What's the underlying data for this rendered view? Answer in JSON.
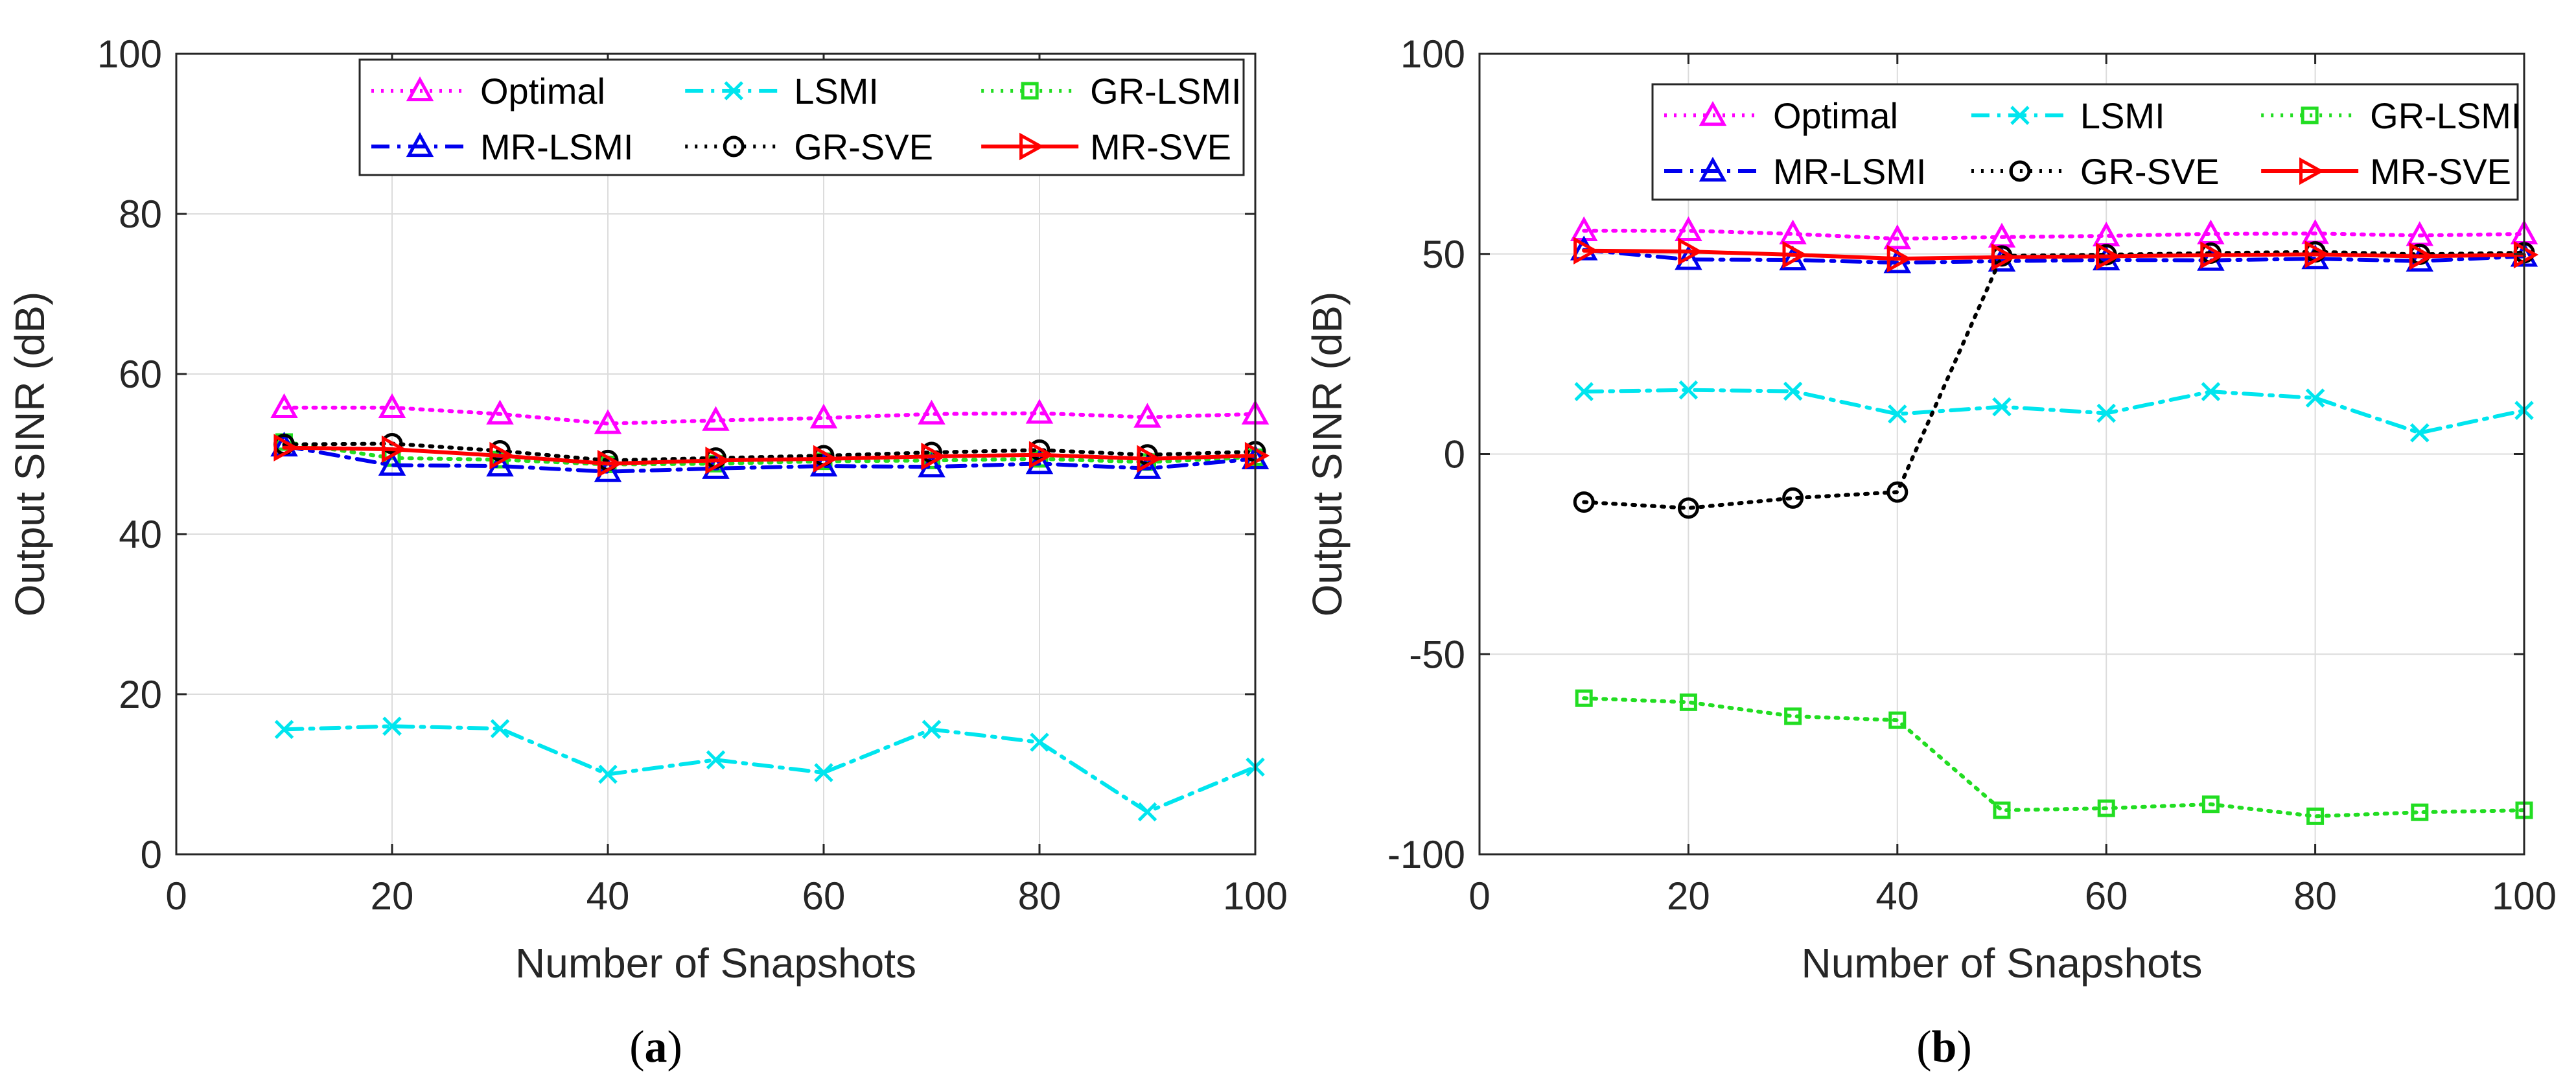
{
  "chart_data": [
    {
      "type": "line",
      "panel": "a",
      "caption": "(a)",
      "xlabel": "Number of Snapshots",
      "ylabel": "Output SINR (dB)",
      "xlim": [
        0,
        100
      ],
      "ylim": [
        0,
        100
      ],
      "xticks": [
        0,
        20,
        40,
        60,
        80,
        100
      ],
      "yticks": [
        0,
        20,
        40,
        60,
        80,
        100
      ],
      "grid": true,
      "legend_position": "top-right",
      "x": [
        10,
        20,
        30,
        40,
        50,
        60,
        70,
        80,
        90,
        100
      ],
      "series": [
        {
          "name": "Optimal",
          "color": "#ff00ff",
          "dash": "dotted",
          "marker": "triangle-up",
          "values": [
            55.8,
            55.8,
            55.0,
            53.8,
            54.2,
            54.5,
            55.0,
            55.1,
            54.6,
            55.0
          ]
        },
        {
          "name": "LSMI",
          "color": "#00e5ee",
          "dash": "dashdot",
          "marker": "x",
          "values": [
            15.6,
            16.0,
            15.7,
            10.0,
            11.8,
            10.2,
            15.6,
            14.0,
            5.3,
            10.9
          ]
        },
        {
          "name": "GR-LSMI",
          "color": "#22dd22",
          "dash": "dotted",
          "marker": "square",
          "values": [
            51.5,
            49.5,
            49.3,
            48.7,
            48.8,
            49.1,
            49.2,
            49.4,
            49.0,
            49.6
          ]
        },
        {
          "name": "MR-LSMI",
          "color": "#0000ee",
          "dash": "dashdot",
          "marker": "triangle-up",
          "values": [
            51.0,
            48.6,
            48.5,
            47.8,
            48.2,
            48.5,
            48.4,
            48.8,
            48.2,
            49.4
          ]
        },
        {
          "name": "GR-SVE",
          "color": "#000000",
          "dash": "dotted",
          "marker": "circle",
          "values": [
            51.2,
            51.3,
            50.4,
            49.2,
            49.5,
            49.8,
            50.2,
            50.5,
            49.9,
            50.3
          ]
        },
        {
          "name": "MR-SVE",
          "color": "#ff0000",
          "dash": "solid",
          "marker": "triangle-right",
          "values": [
            50.8,
            50.6,
            49.8,
            48.8,
            49.2,
            49.4,
            49.7,
            49.9,
            49.4,
            49.8
          ]
        }
      ]
    },
    {
      "type": "line",
      "panel": "b",
      "caption": "(b)",
      "xlabel": "Number of Snapshots",
      "ylabel": "Output SINR (dB)",
      "xlim": [
        0,
        100
      ],
      "ylim": [
        -100,
        100
      ],
      "xticks": [
        0,
        20,
        40,
        60,
        80,
        100
      ],
      "yticks": [
        -100,
        -50,
        0,
        50,
        100
      ],
      "grid": true,
      "legend_position": "top-right",
      "x": [
        10,
        20,
        30,
        40,
        50,
        60,
        70,
        80,
        90,
        100
      ],
      "series": [
        {
          "name": "Optimal",
          "color": "#ff00ff",
          "dash": "dotted",
          "marker": "triangle-up",
          "values": [
            55.8,
            55.8,
            55.0,
            53.8,
            54.2,
            54.5,
            55.0,
            55.1,
            54.6,
            55.0
          ]
        },
        {
          "name": "LSMI",
          "color": "#00e5ee",
          "dash": "dashdot",
          "marker": "x",
          "values": [
            15.6,
            16.0,
            15.7,
            10.0,
            11.8,
            10.2,
            15.6,
            14.0,
            5.3,
            10.9
          ]
        },
        {
          "name": "GR-LSMI",
          "color": "#22dd22",
          "dash": "dotted",
          "marker": "square",
          "values": [
            -61,
            -62,
            -65.5,
            -66.5,
            -89,
            -88.5,
            -87.5,
            -90.5,
            -89.5,
            -89
          ]
        },
        {
          "name": "MR-LSMI",
          "color": "#0000ee",
          "dash": "dashdot",
          "marker": "triangle-up",
          "values": [
            51.0,
            48.6,
            48.5,
            47.8,
            48.2,
            48.5,
            48.4,
            48.8,
            48.2,
            49.4
          ]
        },
        {
          "name": "GR-SVE",
          "color": "#000000",
          "dash": "dotted",
          "marker": "circle",
          "values": [
            -12,
            -13.5,
            -11,
            -9.5,
            49.5,
            49.8,
            50.2,
            50.5,
            49.9,
            50.3
          ]
        },
        {
          "name": "MR-SVE",
          "color": "#ff0000",
          "dash": "solid",
          "marker": "triangle-right",
          "values": [
            50.8,
            50.6,
            49.8,
            48.8,
            49.2,
            49.4,
            49.7,
            49.9,
            49.4,
            49.8
          ]
        }
      ]
    }
  ]
}
